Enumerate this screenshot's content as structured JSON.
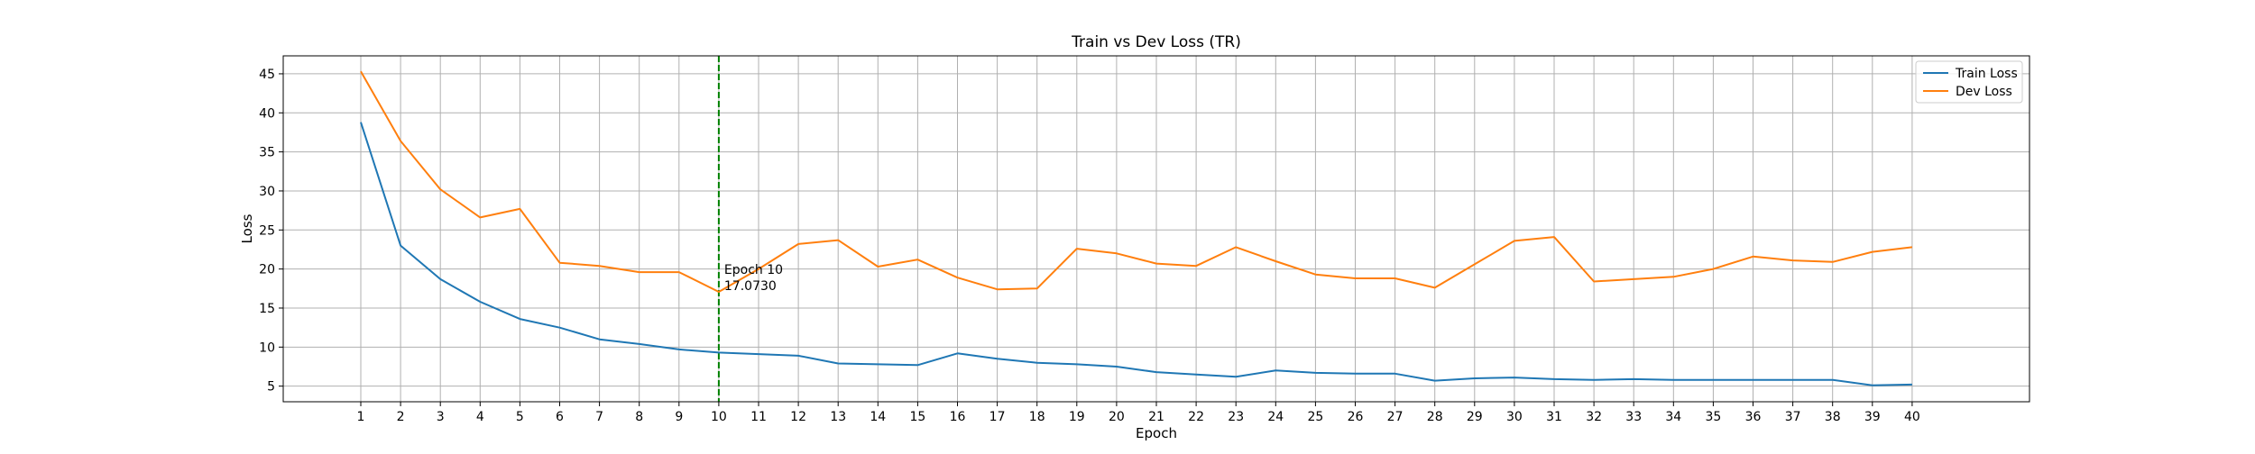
{
  "chart_data": {
    "type": "line",
    "title": "Train vs Dev Loss (TR)",
    "xlabel": "Epoch",
    "ylabel": "Loss",
    "xlim": [
      -0.95,
      42.95
    ],
    "ylim": [
      3.0,
      47.3
    ],
    "x": [
      1,
      2,
      3,
      4,
      5,
      6,
      7,
      8,
      9,
      10,
      11,
      12,
      13,
      14,
      15,
      16,
      17,
      18,
      19,
      20,
      21,
      22,
      23,
      24,
      25,
      26,
      27,
      28,
      29,
      30,
      31,
      32,
      33,
      34,
      35,
      36,
      37,
      38,
      39,
      40
    ],
    "x_ticks": [
      1,
      2,
      3,
      4,
      5,
      6,
      7,
      8,
      9,
      10,
      11,
      12,
      13,
      14,
      15,
      16,
      17,
      18,
      19,
      20,
      21,
      22,
      23,
      24,
      25,
      26,
      27,
      28,
      29,
      30,
      31,
      32,
      33,
      34,
      35,
      36,
      37,
      38,
      39,
      40
    ],
    "y_ticks": [
      5,
      10,
      15,
      20,
      25,
      30,
      35,
      40,
      45
    ],
    "grid": true,
    "legend_position": "top-right",
    "series": [
      {
        "name": "Train Loss",
        "color": "#1f77b4",
        "values": [
          38.8,
          23.0,
          18.7,
          15.8,
          13.6,
          12.5,
          11.0,
          10.4,
          9.7,
          9.3,
          9.1,
          8.9,
          7.9,
          7.8,
          7.7,
          9.2,
          8.5,
          8.0,
          7.8,
          7.5,
          6.8,
          6.5,
          6.2,
          7.0,
          6.7,
          6.6,
          6.6,
          5.7,
          6.0,
          6.1,
          5.9,
          5.8,
          5.9,
          5.8,
          5.8,
          5.8,
          5.8,
          5.8,
          5.1,
          5.2
        ]
      },
      {
        "name": "Dev Loss",
        "color": "#ff7f0e",
        "values": [
          45.3,
          36.4,
          30.2,
          26.6,
          27.7,
          20.8,
          20.4,
          19.6,
          19.6,
          17.07,
          20.0,
          23.2,
          23.7,
          20.3,
          21.2,
          18.9,
          17.4,
          17.5,
          22.6,
          22.0,
          20.7,
          20.4,
          22.8,
          21.0,
          19.3,
          18.8,
          18.8,
          17.6,
          20.6,
          23.6,
          24.1,
          18.4,
          18.7,
          19.0,
          20.0,
          21.6,
          21.1,
          20.9,
          22.2,
          22.8
        ]
      }
    ],
    "vline": {
      "x": 10,
      "color": "#008000",
      "style": "dashed"
    },
    "annotation": {
      "x": 10,
      "y": 17.07,
      "line1": "Epoch 10",
      "line2": "17.0730"
    }
  }
}
